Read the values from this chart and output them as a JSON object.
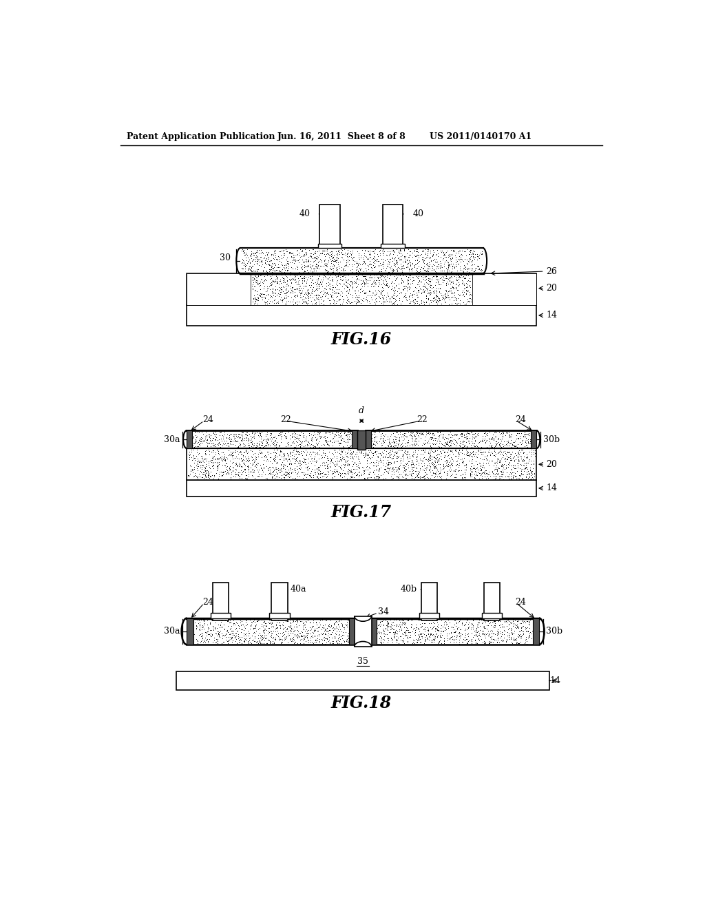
{
  "header_left": "Patent Application Publication",
  "header_mid": "Jun. 16, 2011  Sheet 8 of 8",
  "header_right": "US 2011/0140170 A1",
  "fig16_label": "FIG.16",
  "fig17_label": "FIG.17",
  "fig18_label": "FIG.18",
  "bg_color": "#ffffff"
}
